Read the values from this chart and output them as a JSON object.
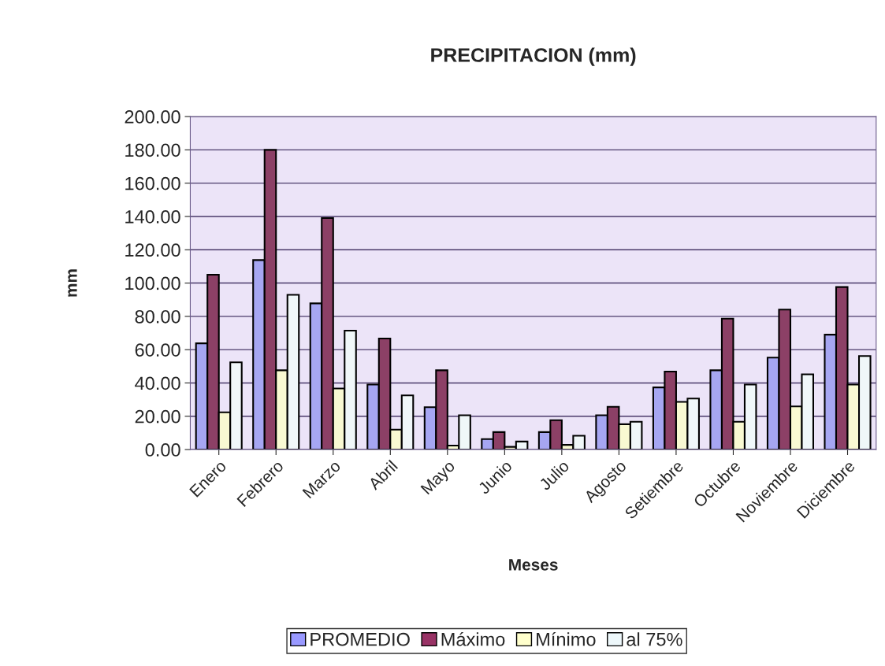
{
  "chart_data": {
    "type": "bar",
    "title": "PRECIPITACION (mm)",
    "xlabel": "Meses",
    "ylabel": "mm",
    "categories": [
      "Enero",
      "Febrero",
      "Marzo",
      "Abril",
      "Mayo",
      "Junio",
      "Julio",
      "Agosto",
      "Setiembre",
      "Octubre",
      "Noviembre",
      "Diciembre"
    ],
    "series": [
      {
        "name": "PROMEDIO",
        "color": "#9999ff",
        "values": [
          63.8,
          113.8,
          87.8,
          39.0,
          25.4,
          6.3,
          10.5,
          20.6,
          37.3,
          47.6,
          55.2,
          69.0
        ]
      },
      {
        "name": "Máximo",
        "color": "#993366",
        "values": [
          105.0,
          180.0,
          139.0,
          66.7,
          47.6,
          10.5,
          17.6,
          25.7,
          46.8,
          78.6,
          84.1,
          97.6
        ]
      },
      {
        "name": "Mínimo",
        "color": "#ffffcc",
        "values": [
          22.4,
          47.6,
          36.7,
          12.0,
          2.4,
          1.6,
          2.8,
          15.2,
          28.6,
          16.7,
          25.9,
          39.0
        ]
      },
      {
        "name": "al 75%",
        "color": "#eef8fb",
        "values": [
          52.4,
          92.9,
          71.4,
          32.5,
          20.6,
          4.8,
          8.3,
          16.7,
          30.6,
          39.0,
          45.2,
          56.2
        ]
      }
    ],
    "ylim": [
      0,
      200
    ],
    "yticks": [
      {
        "value": 0,
        "label": "0.00"
      },
      {
        "value": 20,
        "label": "20.00"
      },
      {
        "value": 40,
        "label": "40.00"
      },
      {
        "value": 60,
        "label": "60.00"
      },
      {
        "value": 80,
        "label": "80.00"
      },
      {
        "value": 100,
        "label": "100.00"
      },
      {
        "value": 120,
        "label": "120.00"
      },
      {
        "value": 140,
        "label": "140.00"
      },
      {
        "value": 160,
        "label": "160.00"
      },
      {
        "value": 180,
        "label": "180.00"
      },
      {
        "value": 200,
        "label": "200.00"
      }
    ],
    "grid": "y",
    "legend": "bottom"
  }
}
